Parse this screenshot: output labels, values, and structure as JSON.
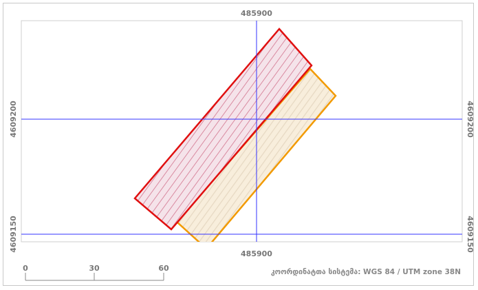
{
  "map": {
    "grid_labels": {
      "easting_top": "485900",
      "easting_bottom": "485900",
      "northing_upper_left": "4609200",
      "northing_lower_left": "4609150",
      "northing_upper_right": "4609200",
      "northing_lower_right": "4609150"
    },
    "features": [
      {
        "name": "red-parcel",
        "stroke": "#e01010",
        "fill": "#f5e3ea",
        "hatch": "#d98aa0"
      },
      {
        "name": "orange-parcel",
        "stroke": "#f29a00",
        "fill": "#f8eedc",
        "hatch": "#e8dcc8"
      }
    ],
    "grid_color": "#3333ff"
  },
  "scale_bar": {
    "labels": [
      "0",
      "30",
      "60"
    ]
  },
  "crs_note": "კოორდინატთა სისტემა: WGS 84 / UTM zone 38N"
}
